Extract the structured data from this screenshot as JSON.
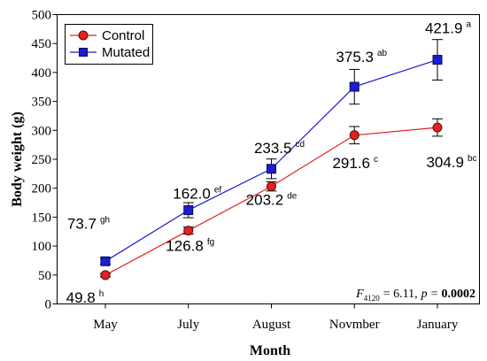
{
  "chart_data": {
    "type": "line",
    "xlabel": "Month",
    "ylabel": "Body weight (g)",
    "categories": [
      "May",
      "July",
      "August",
      "Novmber",
      "January"
    ],
    "ylim": [
      0,
      500
    ],
    "yticks": [
      0,
      50,
      100,
      150,
      200,
      250,
      300,
      350,
      400,
      450,
      500
    ],
    "grid": false,
    "legend": "top-left",
    "series": [
      {
        "name": "Control",
        "color": "#e32222",
        "edge_color": "#5a0a0a",
        "marker": "circle",
        "values": [
          49.8,
          126.8,
          203.2,
          291.6,
          304.9
        ],
        "error": [
          3,
          6,
          8,
          15,
          15
        ],
        "labels": [
          "49.8",
          "126.8",
          "203.2",
          "291.6",
          "304.9"
        ],
        "letters": [
          "h",
          "fg",
          "de",
          "c",
          "bc"
        ]
      },
      {
        "name": "Mutated",
        "color": "#1c1cd6",
        "edge_color": "#0a0a4a",
        "marker": "square",
        "values": [
          73.7,
          162.0,
          233.5,
          375.3,
          421.9
        ],
        "error": [
          5,
          13,
          17,
          30,
          35
        ],
        "labels": [
          "73.7",
          "162.0",
          "233.5",
          "375.3",
          "421.9"
        ],
        "letters": [
          "gh",
          "ef",
          "cd",
          "ab",
          "a"
        ]
      }
    ],
    "annotation": {
      "stat_symbol": "F",
      "stat_df": "4120",
      "stat_value": "= 6.11,",
      "p_symbol": "p",
      "p_equals": "=",
      "p_value": "0.0002"
    }
  }
}
